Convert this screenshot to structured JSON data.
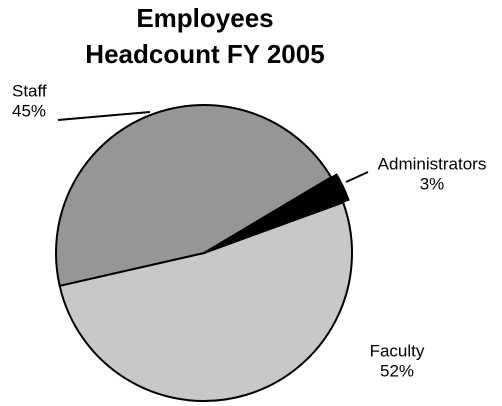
{
  "chart_data": {
    "type": "pie",
    "title": [
      "Employees",
      "Headcount FY 2005"
    ],
    "categories": [
      "Faculty",
      "Staff",
      "Administrators"
    ],
    "values": [
      52,
      45,
      3
    ],
    "value_labels": [
      "52%",
      "45%",
      "3%"
    ],
    "colors": [
      "#c8c8c8",
      "#969696",
      "#000000"
    ]
  }
}
